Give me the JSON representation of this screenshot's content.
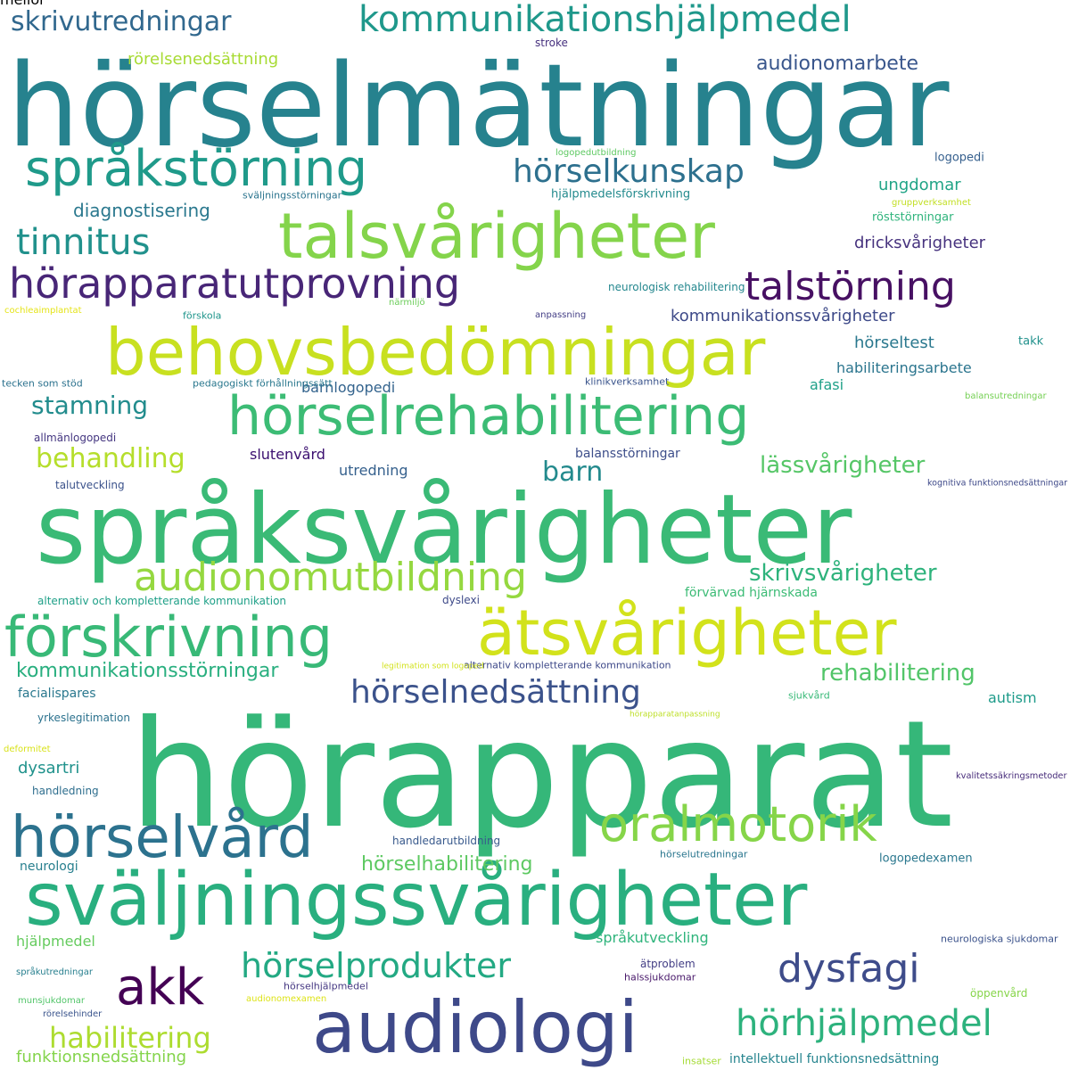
{
  "words": [
    {
      "text": "hörapparat",
      "color": "#35b779",
      "vertical": false
    },
    {
      "text": "hörselmätningar",
      "color": "#26828e",
      "vertical": false
    },
    {
      "text": "språksvårigheter",
      "color": "#3aba76",
      "vertical": false
    },
    {
      "text": "sväljningssvårigheter",
      "color": "#29af7f",
      "vertical": false
    },
    {
      "text": "behovsbedömningar",
      "color": "#c8e020",
      "vertical": false
    },
    {
      "text": "talsvårigheter",
      "color": "#84d44b",
      "vertical": false
    },
    {
      "text": "hörselrehabilitering",
      "color": "#3cbc75",
      "vertical": false
    },
    {
      "text": "förskrivning",
      "color": "#38b977",
      "vertical": false
    },
    {
      "text": "ätsvårigheter",
      "color": "#d2e21b",
      "vertical": false
    },
    {
      "text": "audiologi",
      "color": "#3e4989",
      "vertical": false
    },
    {
      "text": "språkstörning",
      "color": "#1f9a8a",
      "vertical": false
    },
    {
      "text": "hörselvård",
      "color": "#2c728e",
      "vertical": false
    },
    {
      "text": "oralmotorik",
      "color": "#86d549",
      "vertical": false
    },
    {
      "text": "hörapparatutprovning",
      "color": "#482677",
      "vertical": false
    },
    {
      "text": "talstörning",
      "color": "#471063",
      "vertical": false
    },
    {
      "text": "kommunikationshjälpmedel",
      "color": "#1f988b",
      "vertical": false
    },
    {
      "text": "audionomutbildning",
      "color": "#95d840",
      "vertical": false
    },
    {
      "text": "hörselnedsättning",
      "color": "#3b528b",
      "vertical": false
    },
    {
      "text": "hörselprodukter",
      "color": "#23a983",
      "vertical": false
    },
    {
      "text": "hörselkunskap",
      "color": "#2d708e",
      "vertical": false
    },
    {
      "text": "akk",
      "color": "#440154",
      "vertical": false
    },
    {
      "text": "dysfagi",
      "color": "#3e4c8a",
      "vertical": false
    },
    {
      "text": "hörhjälpmedel",
      "color": "#2db27d",
      "vertical": false
    },
    {
      "text": "tinnitus",
      "color": "#21918c",
      "vertical": false
    },
    {
      "text": "skrivutredningar",
      "color": "#31688e",
      "vertical": false
    },
    {
      "text": "habilitering",
      "color": "#addc30",
      "vertical": false
    },
    {
      "text": "skrivsvårigheter",
      "color": "#2eb37c",
      "vertical": false
    },
    {
      "text": "rehabilitering",
      "color": "#52c569",
      "vertical": false
    },
    {
      "text": "behandling",
      "color": "#b5de2b",
      "vertical": false
    },
    {
      "text": "barn",
      "color": "#238a8d",
      "vertical": false
    },
    {
      "text": "lässvårigheter",
      "color": "#56c667",
      "vertical": false
    },
    {
      "text": "stamning",
      "color": "#228c8d",
      "vertical": false
    },
    {
      "text": "hörselhabilitering",
      "color": "#5ec962",
      "vertical": false
    },
    {
      "text": "audionomarbete",
      "color": "#39568c",
      "vertical": false
    },
    {
      "text": "kommunikationsstörningar",
      "color": "#29af7f",
      "vertical": false
    },
    {
      "text": "kommunikationssvårigheter",
      "color": "#3e4a89",
      "vertical": false
    },
    {
      "text": "diagnostisering",
      "color": "#2a788e",
      "vertical": false
    },
    {
      "text": "ungdomar",
      "color": "#20a486",
      "vertical": false
    },
    {
      "text": "dricksvårigheter",
      "color": "#46327e",
      "vertical": false
    },
    {
      "text": "hörseltest",
      "color": "#2a788e",
      "vertical": false
    },
    {
      "text": "habiliteringsarbete",
      "color": "#2b758e",
      "vertical": false
    },
    {
      "text": "språkutveckling",
      "color": "#2fb47c",
      "vertical": false
    },
    {
      "text": "dysartri",
      "color": "#20928c",
      "vertical": false
    },
    {
      "text": "rörelsenedsättning",
      "color": "#a8db34",
      "vertical": false
    },
    {
      "text": "funktionsnedsättning",
      "color": "#84d44b",
      "vertical": false
    },
    {
      "text": "barnlogopedi",
      "color": "#33638d",
      "vertical": false
    },
    {
      "text": "utredning",
      "color": "#35608d",
      "vertical": false
    },
    {
      "text": "slutenvård",
      "color": "#3b0f70",
      "vertical": false
    },
    {
      "text": "afasi",
      "color": "#1fa088",
      "vertical": false
    },
    {
      "text": "balansstörningar",
      "color": "#3d4e8a",
      "vertical": false
    },
    {
      "text": "förvärvad hjärnskada",
      "color": "#3bbb75",
      "vertical": false
    },
    {
      "text": "autism",
      "color": "#1e9b8a",
      "vertical": false
    },
    {
      "text": "hjälpmedel",
      "color": "#65cb5e",
      "vertical": false
    },
    {
      "text": "neurologi",
      "color": "#277f8e",
      "vertical": false
    },
    {
      "text": "logopedexamen",
      "color": "#2a778e",
      "vertical": false
    },
    {
      "text": "röststörningar",
      "color": "#2fb47c",
      "vertical": false
    },
    {
      "text": "takk",
      "color": "#21918c",
      "vertical": false
    },
    {
      "text": "logopedi",
      "color": "#355f8d",
      "vertical": false
    },
    {
      "text": "facialispares",
      "color": "#2a788e",
      "vertical": false
    },
    {
      "text": "ätproblem",
      "color": "#433e85",
      "vertical": false
    },
    {
      "text": "öppenvård",
      "color": "#86d549",
      "vertical": false
    },
    {
      "text": "intellektuell funktionsnedsättning",
      "color": "#25848e",
      "vertical": false
    },
    {
      "text": "hjälpmedelsförskrivning",
      "color": "#238a8d",
      "vertical": false
    },
    {
      "text": "alternativ och kompletterande kommunikation",
      "color": "#1fa088",
      "vertical": false
    },
    {
      "text": "alternativ kompletterande kommunikation",
      "color": "#3e4989",
      "vertical": false
    },
    {
      "text": "dyslexi",
      "color": "#3e4a89",
      "vertical": false
    },
    {
      "text": "handledarutbildning",
      "color": "#38598c",
      "vertical": false
    },
    {
      "text": "neurologisk rehabilitering",
      "color": "#24878e",
      "vertical": false
    },
    {
      "text": "allmänlogopedi",
      "color": "#453781",
      "vertical": false
    },
    {
      "text": "klinikverksamhet",
      "color": "#3a548c",
      "vertical": false
    },
    {
      "text": "hörselutredningar",
      "color": "#2a768e",
      "vertical": false
    },
    {
      "text": "kognitiva funktionsnedsättningar",
      "color": "#3e4989",
      "vertical": false
    },
    {
      "text": "talutveckling",
      "color": "#3b528b",
      "vertical": false
    },
    {
      "text": "yrkeslegitimation",
      "color": "#2c728e",
      "vertical": false
    },
    {
      "text": "handledning",
      "color": "#2e6e8e",
      "vertical": false
    },
    {
      "text": "sjukvård",
      "color": "#38b977",
      "vertical": false
    },
    {
      "text": "hörselhjälpmedel",
      "color": "#453882",
      "vertical": false
    },
    {
      "text": "halssjukdomar",
      "color": "#48186a",
      "vertical": false
    },
    {
      "text": "tecken som stöd",
      "color": "#2c728e",
      "vertical": false
    },
    {
      "text": "pedagogiskt förhållningssätt",
      "color": "#2a788e",
      "vertical": false
    },
    {
      "text": "förskola",
      "color": "#1f958b",
      "vertical": false
    },
    {
      "text": "sväljningsstörningar",
      "color": "#2b748e",
      "vertical": false
    },
    {
      "text": "kvalitetssäkringsmetoder",
      "color": "#472c7a",
      "vertical": false
    },
    {
      "text": "språkutredningar",
      "color": "#277f8e",
      "vertical": false
    },
    {
      "text": "munsjukdomar",
      "color": "#52c569",
      "vertical": false
    },
    {
      "text": "rörelsehinder",
      "color": "#3a548c",
      "vertical": false
    },
    {
      "text": "neurologiska sjukdomar",
      "color": "#3b528b",
      "vertical": false
    },
    {
      "text": "gruppverksamhet",
      "color": "#c2df23",
      "vertical": false
    },
    {
      "text": "logopedutbildning",
      "color": "#5ec962",
      "vertical": false
    },
    {
      "text": "anpassning",
      "color": "#433e85",
      "vertical": false
    },
    {
      "text": "insatser",
      "color": "#a5db36",
      "vertical": false
    },
    {
      "text": "stroke",
      "color": "#46307e",
      "vertical": false
    },
    {
      "text": "cochleaimplantat",
      "color": "#e5e419",
      "vertical": false
    },
    {
      "text": "närmiljö",
      "color": "#6ccd5a",
      "vertical": false
    },
    {
      "text": "balansutredningar",
      "color": "#75d054",
      "vertical": false
    },
    {
      "text": "deformitet",
      "color": "#d8e219",
      "vertical": false
    },
    {
      "text": "hörapparatanpassning",
      "color": "#bddf26",
      "vertical": false
    },
    {
      "text": "audionomexamen",
      "color": "#dde318",
      "vertical": false
    },
    {
      "text": "legitimation som logoped",
      "color": "#d2e21b",
      "vertical": false
    },
    {
      "text": "melior",
      "color": "#c0df25",
      "vertical": false
    }
  ]
}
